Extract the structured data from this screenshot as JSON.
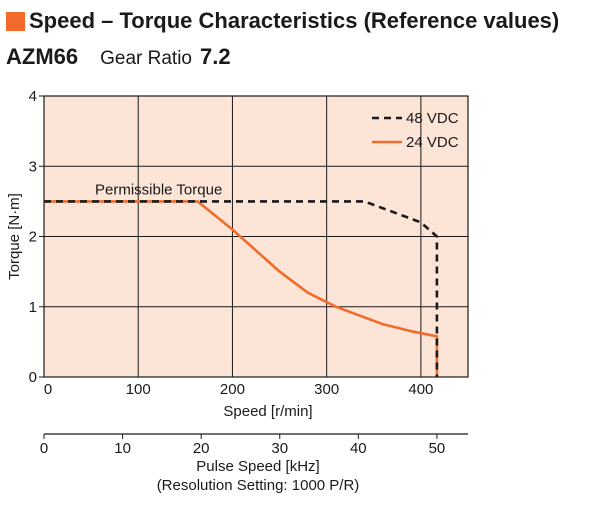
{
  "header": {
    "title": "Speed – Torque Characteristics (Reference values)",
    "model": "AZM66",
    "gear_ratio_label": "Gear Ratio",
    "gear_ratio_value": "7.2"
  },
  "colors": {
    "accent": "#f26b2a",
    "plot_background": "#fce5d6",
    "series_48vdc": "#1a1a1a",
    "series_24vdc": "#f26b2a"
  },
  "chart_data": {
    "type": "line",
    "title": "Speed – Torque Characteristics (Reference values)",
    "xlabel": "Speed [r/min]",
    "ylabel": "Torque [N·m]",
    "xlim": [
      0,
      450
    ],
    "ylim": [
      0,
      4
    ],
    "x_ticks": [
      0,
      100,
      200,
      300,
      400
    ],
    "y_ticks": [
      0,
      1,
      2,
      3,
      4
    ],
    "grid": true,
    "legend_position": "top-right",
    "annotation": "Permissible Torque",
    "secondary_x_axis": {
      "label": "Pulse Speed [kHz]",
      "note": "(Resolution Setting: 1000 P/R)",
      "ticks": [
        0,
        10,
        20,
        30,
        40,
        50
      ],
      "max_speed_equivalent": 417
    },
    "series": [
      {
        "name": "48 VDC",
        "style": "dashed",
        "points": [
          [
            0,
            2.5
          ],
          [
            340,
            2.5
          ],
          [
            360,
            2.4
          ],
          [
            400,
            2.2
          ],
          [
            417,
            2.0
          ],
          [
            417,
            0
          ]
        ]
      },
      {
        "name": "24 VDC",
        "style": "solid",
        "points": [
          [
            0,
            2.5
          ],
          [
            163,
            2.5
          ],
          [
            200,
            2.1
          ],
          [
            250,
            1.5
          ],
          [
            280,
            1.2
          ],
          [
            310,
            1.0
          ],
          [
            360,
            0.75
          ],
          [
            390,
            0.65
          ],
          [
            417,
            0.58
          ],
          [
            417,
            0
          ]
        ]
      }
    ]
  }
}
